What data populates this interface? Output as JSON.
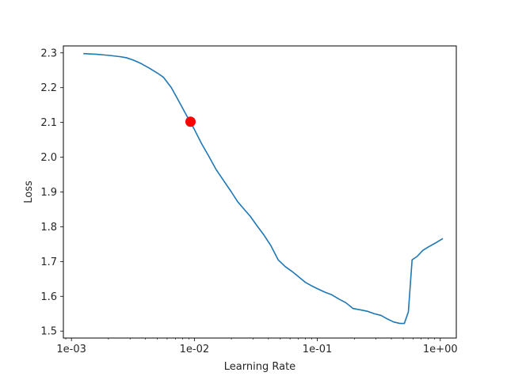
{
  "chart_data": {
    "type": "line",
    "title": "",
    "xlabel": "Learning Rate",
    "ylabel": "Loss",
    "xscale": "log",
    "xlim": [
      0.00086,
      1.35
    ],
    "ylim": [
      1.48,
      2.32
    ],
    "x_ticks": [
      {
        "value": 0.001,
        "label": "1e-03"
      },
      {
        "value": 0.01,
        "label": "1e-02"
      },
      {
        "value": 0.1,
        "label": "1e-01"
      },
      {
        "value": 1,
        "label": "1e+00"
      }
    ],
    "y_ticks": [
      {
        "value": 1.5,
        "label": "1.5"
      },
      {
        "value": 1.6,
        "label": "1.6"
      },
      {
        "value": 1.7,
        "label": "1.7"
      },
      {
        "value": 1.8,
        "label": "1.8"
      },
      {
        "value": 1.9,
        "label": "1.9"
      },
      {
        "value": 2.0,
        "label": "2.0"
      },
      {
        "value": 2.1,
        "label": "2.1"
      },
      {
        "value": 2.2,
        "label": "2.2"
      },
      {
        "value": 2.3,
        "label": "2.3"
      }
    ],
    "grid": false,
    "line_color": "#1f77b4",
    "marker_color": "#ff0000",
    "series": [
      {
        "x": [
          0.00125,
          0.0016,
          0.002,
          0.0025,
          0.0028,
          0.0032,
          0.0037,
          0.0043,
          0.005,
          0.0056,
          0.0065,
          0.0075,
          0.0087,
          0.01,
          0.0114,
          0.013,
          0.015,
          0.0175,
          0.02,
          0.0225,
          0.025,
          0.0285,
          0.032,
          0.0365,
          0.042,
          0.048,
          0.055,
          0.062,
          0.07,
          0.08,
          0.09,
          0.1,
          0.115,
          0.13,
          0.15,
          0.17,
          0.195,
          0.225,
          0.255,
          0.29,
          0.33,
          0.375,
          0.42,
          0.47,
          0.51,
          0.55,
          0.59,
          0.65,
          0.72,
          0.8,
          0.9,
          1.05
        ],
        "y": [
          2.298,
          2.296,
          2.293,
          2.289,
          2.286,
          2.279,
          2.269,
          2.256,
          2.242,
          2.23,
          2.2,
          2.16,
          2.118,
          2.08,
          2.04,
          2.005,
          1.965,
          1.93,
          1.9,
          1.872,
          1.853,
          1.83,
          1.805,
          1.778,
          1.745,
          1.705,
          1.685,
          1.672,
          1.657,
          1.64,
          1.63,
          1.622,
          1.612,
          1.605,
          1.592,
          1.582,
          1.565,
          1.561,
          1.557,
          1.55,
          1.545,
          1.534,
          1.526,
          1.522,
          1.522,
          1.555,
          1.705,
          1.715,
          1.732,
          1.742,
          1.752,
          1.766
        ]
      }
    ],
    "highlight_point": {
      "x": 0.0093,
      "y": 2.102
    }
  }
}
